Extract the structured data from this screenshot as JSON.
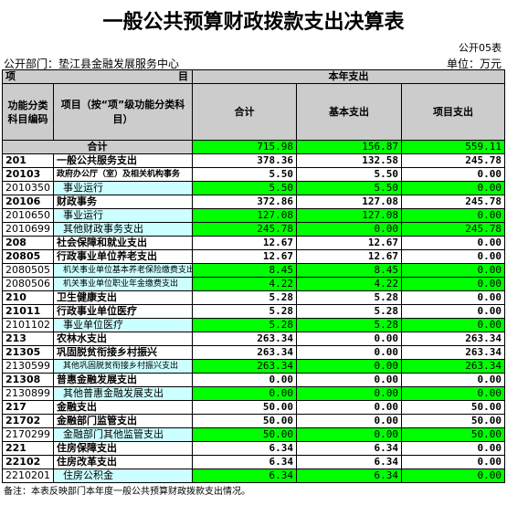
{
  "header": {
    "title": "一般公共预算财政拨款支出决算表",
    "form_no": "公开05表",
    "department": "公开部门：垫江县金融发展服务中心",
    "unit": "单位：万元"
  },
  "table": {
    "head": {
      "left": "项",
      "right": "目",
      "span": "本年支出",
      "columns": [
        "功能分类科目编码",
        "项目（按“项”级功能分类科目）",
        "合计",
        "基本支出",
        "项目支出"
      ]
    },
    "total": {
      "label": "合计",
      "values": [
        "715.98",
        "156.87",
        "559.11"
      ]
    },
    "rows": [
      [
        "201",
        "一般公共服务支出",
        "378.36",
        "132.58",
        "245.78"
      ],
      [
        "20103",
        "政府办公厅（室）及相关机构事务",
        "5.50",
        "5.50",
        "0.00"
      ],
      [
        "2010350",
        "事业运行",
        "5.50",
        "5.50",
        "0.00"
      ],
      [
        "20106",
        "财政事务",
        "372.86",
        "127.08",
        "245.78"
      ],
      [
        "2010650",
        "事业运行",
        "127.08",
        "127.08",
        "0.00"
      ],
      [
        "2010699",
        "其他财政事务支出",
        "245.78",
        "0.00",
        "245.78"
      ],
      [
        "208",
        "社会保障和就业支出",
        "12.67",
        "12.67",
        "0.00"
      ],
      [
        "20805",
        "行政事业单位养老支出",
        "12.67",
        "12.67",
        "0.00"
      ],
      [
        "2080505",
        "机关事业单位基本养老保险缴费支出",
        "8.45",
        "8.45",
        "0.00"
      ],
      [
        "2080506",
        "机关事业单位职业年金缴费支出",
        "4.22",
        "4.22",
        "0.00"
      ],
      [
        "210",
        "卫生健康支出",
        "5.28",
        "5.28",
        "0.00"
      ],
      [
        "21011",
        "行政事业单位医疗",
        "5.28",
        "5.28",
        "0.00"
      ],
      [
        "2101102",
        "事业单位医疗",
        "5.28",
        "5.28",
        "0.00"
      ],
      [
        "213",
        "农林水支出",
        "263.34",
        "0.00",
        "263.34"
      ],
      [
        "21305",
        "巩固脱贫衔接乡村振兴",
        "263.34",
        "0.00",
        "263.34"
      ],
      [
        "2130599",
        "其他巩固脱贫衔接乡村振兴支出",
        "263.34",
        "0.00",
        "263.34"
      ],
      [
        "21308",
        "普惠金融发展支出",
        "0.00",
        "0.00",
        "0.00"
      ],
      [
        "2130899",
        "其他普惠金融发展支出",
        "0.00",
        "0.00",
        "0.00"
      ],
      [
        "217",
        "金融支出",
        "50.00",
        "0.00",
        "50.00"
      ],
      [
        "21702",
        "金融部门监管支出",
        "50.00",
        "0.00",
        "50.00"
      ],
      [
        "2170299",
        "金融部门其他监管支出",
        "50.00",
        "0.00",
        "50.00"
      ],
      [
        "221",
        "住房保障支出",
        "6.34",
        "6.34",
        "0.00"
      ],
      [
        "22102",
        "住房改革支出",
        "6.34",
        "6.34",
        "0.00"
      ],
      [
        "2210201",
        "住房公积金",
        "6.34",
        "6.34",
        "0.00"
      ]
    ]
  },
  "footer": {
    "note": "备注：本表反映部门本年度一般公共预算财政拨款支出情况。"
  }
}
